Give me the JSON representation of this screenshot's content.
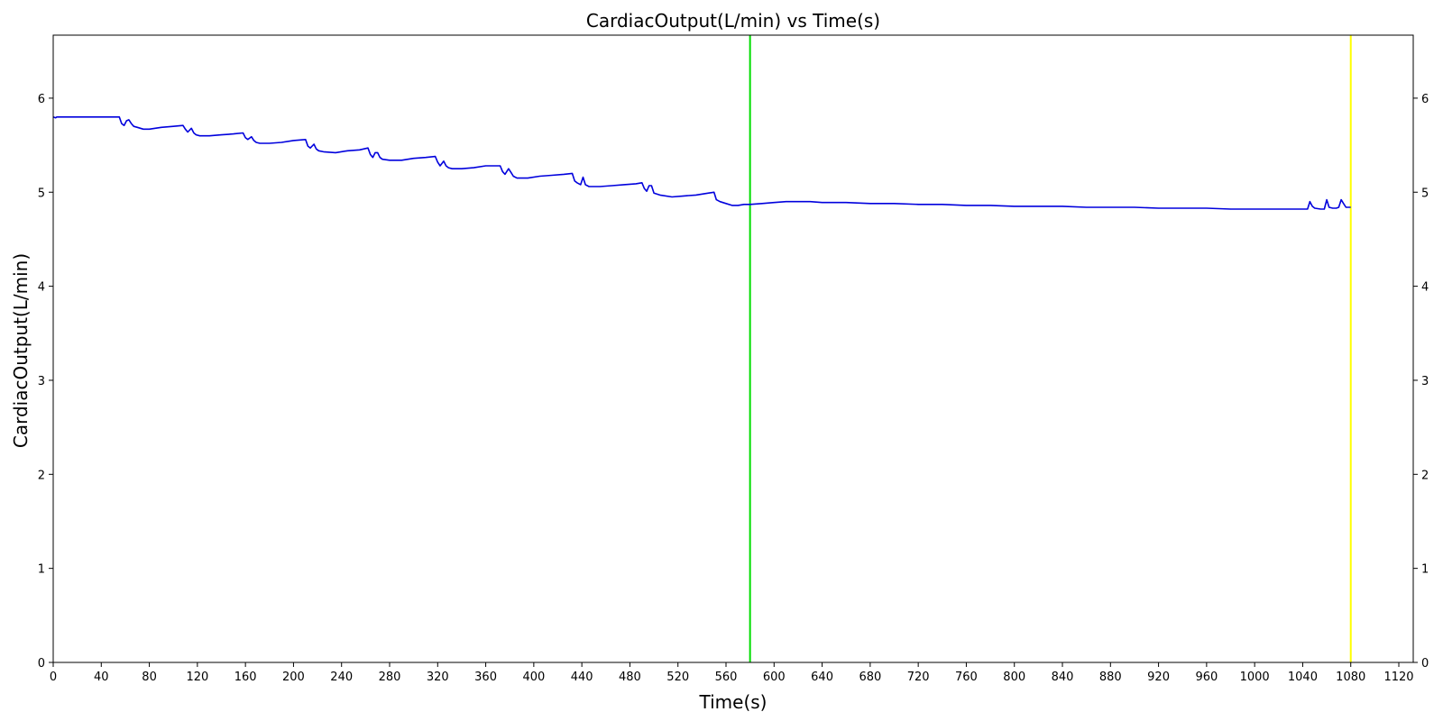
{
  "chart_data": {
    "type": "line",
    "title": "CardiacOutput(L/min) vs Time(s)",
    "xlabel": "Time(s)",
    "ylabel": "CardiacOutput(L/min)",
    "xlim": [
      0,
      1132
    ],
    "ylim": [
      0,
      6.67
    ],
    "x_ticks": [
      0,
      40,
      80,
      120,
      160,
      200,
      240,
      280,
      320,
      360,
      400,
      440,
      480,
      520,
      560,
      600,
      640,
      680,
      720,
      760,
      800,
      840,
      880,
      920,
      960,
      1000,
      1040,
      1080,
      1120
    ],
    "y_ticks": [
      0,
      1,
      2,
      3,
      4,
      5,
      6
    ],
    "grid": false,
    "right_axis_mirrored": true,
    "series": [
      {
        "color": "#0000dd",
        "x": [
          0,
          2,
          3,
          55,
          57,
          59,
          61,
          63,
          65,
          67,
          70,
          75,
          80,
          85,
          90,
          100,
          108,
          110,
          112,
          115,
          117,
          119,
          122,
          130,
          140,
          150,
          158,
          160,
          162,
          165,
          167,
          169,
          172,
          180,
          190,
          200,
          210,
          212,
          214,
          217,
          219,
          221,
          225,
          235,
          245,
          255,
          262,
          264,
          266,
          268,
          270,
          272,
          274,
          280,
          290,
          300,
          310,
          318,
          320,
          322,
          325,
          327,
          329,
          332,
          340,
          350,
          360,
          372,
          374,
          376,
          379,
          381,
          383,
          386,
          395,
          405,
          415,
          425,
          432,
          434,
          436,
          439,
          441,
          443,
          446,
          455,
          465,
          475,
          485,
          490,
          492,
          494,
          496,
          498,
          500,
          505,
          515,
          525,
          535,
          545,
          550,
          552,
          555,
          560,
          565,
          570,
          575,
          580,
          590,
          600,
          610,
          620,
          630,
          640,
          660,
          680,
          700,
          720,
          740,
          760,
          780,
          800,
          820,
          840,
          860,
          880,
          900,
          920,
          940,
          960,
          980,
          1000,
          1020,
          1040,
          1044,
          1046,
          1048,
          1050,
          1055,
          1058,
          1060,
          1062,
          1065,
          1068,
          1070,
          1072,
          1074,
          1076,
          1080
        ],
        "y": [
          5.8,
          5.79,
          5.8,
          5.8,
          5.73,
          5.71,
          5.76,
          5.77,
          5.73,
          5.7,
          5.69,
          5.67,
          5.67,
          5.68,
          5.69,
          5.7,
          5.71,
          5.67,
          5.64,
          5.68,
          5.63,
          5.61,
          5.6,
          5.6,
          5.61,
          5.62,
          5.63,
          5.58,
          5.56,
          5.59,
          5.55,
          5.53,
          5.52,
          5.52,
          5.53,
          5.55,
          5.56,
          5.49,
          5.47,
          5.51,
          5.46,
          5.44,
          5.43,
          5.42,
          5.44,
          5.45,
          5.47,
          5.4,
          5.37,
          5.42,
          5.42,
          5.37,
          5.35,
          5.34,
          5.34,
          5.36,
          5.37,
          5.38,
          5.32,
          5.28,
          5.33,
          5.28,
          5.26,
          5.25,
          5.25,
          5.26,
          5.28,
          5.28,
          5.22,
          5.19,
          5.25,
          5.21,
          5.17,
          5.15,
          5.15,
          5.17,
          5.18,
          5.19,
          5.2,
          5.12,
          5.1,
          5.08,
          5.16,
          5.08,
          5.06,
          5.06,
          5.07,
          5.08,
          5.09,
          5.1,
          5.04,
          5.01,
          5.07,
          5.07,
          4.99,
          4.97,
          4.95,
          4.96,
          4.97,
          4.99,
          5.0,
          4.92,
          4.9,
          4.88,
          4.86,
          4.86,
          4.87,
          4.87,
          4.88,
          4.89,
          4.9,
          4.9,
          4.9,
          4.89,
          4.89,
          4.88,
          4.88,
          4.87,
          4.87,
          4.86,
          4.86,
          4.85,
          4.85,
          4.85,
          4.84,
          4.84,
          4.84,
          4.83,
          4.83,
          4.83,
          4.82,
          4.82,
          4.82,
          4.82,
          4.82,
          4.9,
          4.85,
          4.83,
          4.82,
          4.82,
          4.92,
          4.84,
          4.83,
          4.83,
          4.84,
          4.92,
          4.88,
          4.84,
          4.84
        ]
      }
    ],
    "vlines": [
      {
        "x": 580,
        "color": "#00dd00"
      },
      {
        "x": 1080,
        "color": "#ffff00"
      }
    ]
  }
}
